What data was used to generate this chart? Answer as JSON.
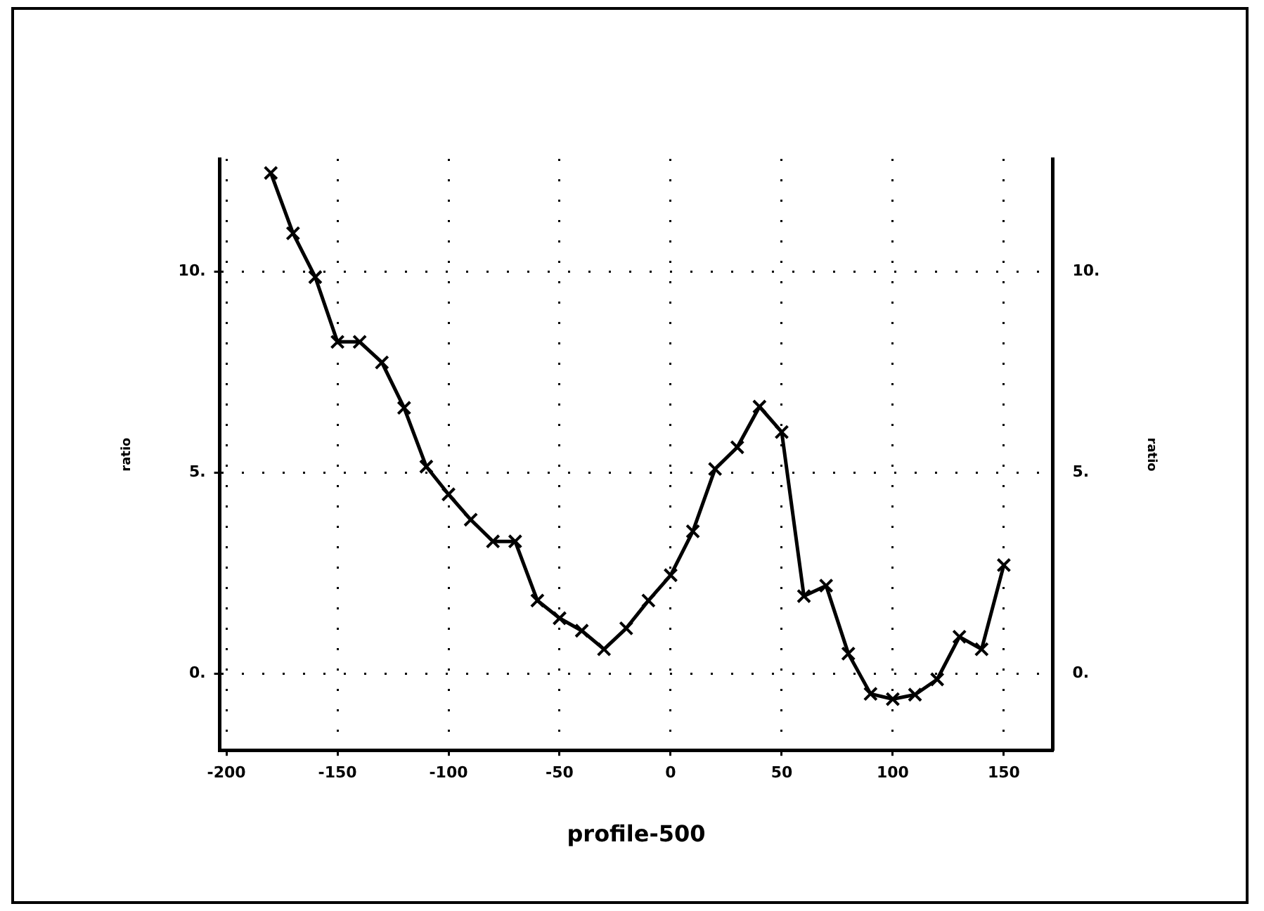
{
  "chart_data": {
    "type": "line",
    "xlabel": "profile-500",
    "ylabel": "ratio",
    "y2label": "ratio",
    "x": [
      -180,
      -170,
      -160,
      -150,
      -140,
      -130,
      -120,
      -110,
      -100,
      -90,
      -80,
      -70,
      -60,
      -50,
      -40,
      -30,
      -20,
      -10,
      0,
      10,
      20,
      30,
      40,
      50,
      60,
      70,
      80,
      90,
      100,
      110,
      120,
      130,
      140,
      150
    ],
    "series": [
      {
        "color": "#000000",
        "values": [
          12.45,
          10.95,
          9.86,
          8.25,
          8.25,
          7.74,
          6.61,
          5.15,
          4.46,
          3.83,
          3.29,
          3.29,
          1.82,
          1.38,
          1.07,
          0.61,
          1.13,
          1.82,
          2.45,
          3.54,
          5.09,
          5.63,
          6.64,
          6.01,
          1.93,
          2.19,
          0.5,
          -0.5,
          -0.63,
          -0.52,
          -0.14,
          0.92,
          0.61,
          2.7
        ]
      }
    ],
    "xlim": [
      -203,
      172
    ],
    "xticks": [
      -200,
      -150,
      -100,
      -50,
      0,
      50,
      100,
      150
    ],
    "ylim": [
      -1.9,
      12.8
    ],
    "yticks": [
      {
        "value": 0,
        "label": "0."
      },
      {
        "value": 5,
        "label": "5."
      },
      {
        "value": 10,
        "label": "10."
      }
    ],
    "y2lim": [
      -1.9,
      12.8
    ],
    "y2ticks": [
      {
        "value": 0,
        "label": "0."
      },
      {
        "value": 5,
        "label": "5."
      },
      {
        "value": 10,
        "label": "10."
      }
    ],
    "grid": true,
    "legend": false,
    "marker": "cross",
    "line_style": "solid"
  }
}
